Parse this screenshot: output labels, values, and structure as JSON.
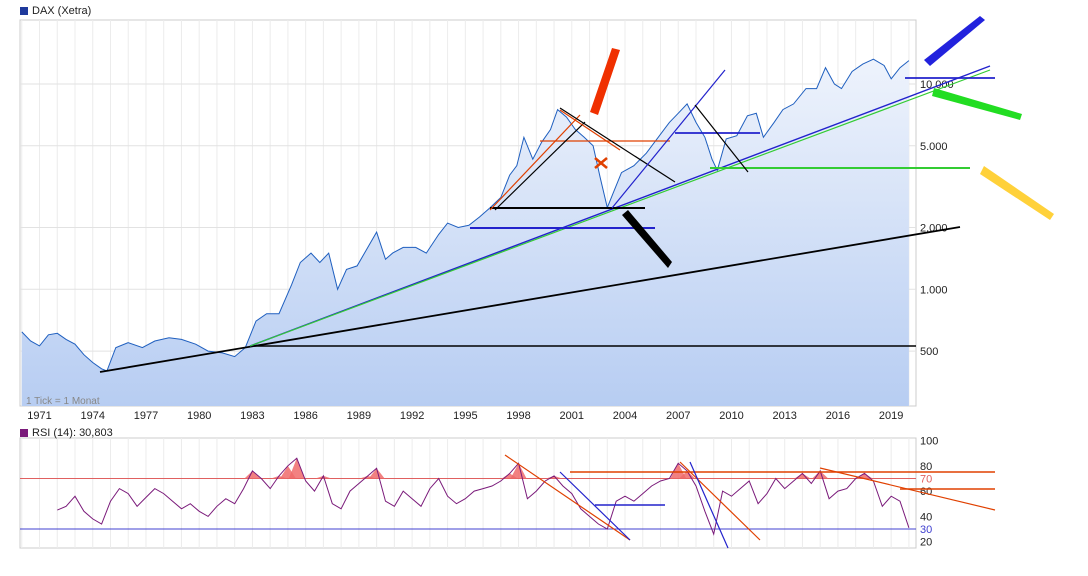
{
  "chart_data": [
    {
      "type": "area",
      "title": "DAX (Xetra)",
      "scale": "log",
      "x_ticks": [
        "1971",
        "1974",
        "1977",
        "1980",
        "1983",
        "1986",
        "1989",
        "1992",
        "1995",
        "1998",
        "2001",
        "2004",
        "2007",
        "2010",
        "2013",
        "2016",
        "2019"
      ],
      "y_ticks": [
        {
          "value": 500,
          "label": "500"
        },
        {
          "value": 1000,
          "label": "1.000"
        },
        {
          "value": 2000,
          "label": "2.000"
        },
        {
          "value": 5000,
          "label": "5.000"
        },
        {
          "value": 10000,
          "label": "10.000"
        }
      ],
      "xlim": [
        1969.9,
        2020.4
      ],
      "ylim": [
        270,
        20500
      ],
      "footnote": "1 Tick = 1 Monat",
      "series": [
        {
          "x": [
            1970.0,
            1970.5,
            1971.0,
            1971.5,
            1972.0,
            1972.5,
            1973.0,
            1973.5,
            1974.0,
            1974.5,
            1974.8,
            1975.3,
            1976.0,
            1976.8,
            1977.5,
            1978.3,
            1979.0,
            1979.8,
            1980.5,
            1981.3,
            1982.0,
            1982.6,
            1983.2,
            1983.8,
            1984.5,
            1985.2,
            1985.7,
            1986.3,
            1986.8,
            1987.3,
            1987.8,
            1988.3,
            1988.9,
            1989.5,
            1990.0,
            1990.5,
            1990.9,
            1991.5,
            1992.2,
            1992.8,
            1993.5,
            1994.0,
            1994.6,
            1995.2,
            1995.8,
            1996.4,
            1997.0,
            1997.5,
            1997.9,
            1998.3,
            1998.8,
            1999.3,
            1999.8,
            2000.2,
            2000.7,
            2001.2,
            2001.7,
            2002.2,
            2002.6,
            2003.0,
            2003.3,
            2003.8,
            2004.5,
            2005.2,
            2005.8,
            2006.5,
            2007.0,
            2007.5,
            2008.0,
            2008.5,
            2008.9,
            2009.2,
            2009.7,
            2010.3,
            2010.9,
            2011.4,
            2011.8,
            2012.4,
            2012.9,
            2013.5,
            2014.2,
            2014.8,
            2015.3,
            2015.8,
            2016.2,
            2016.8,
            2017.4,
            2018.0,
            2018.6,
            2019.0,
            2019.5,
            2020.0
          ],
          "values": [
            620,
            560,
            530,
            600,
            610,
            570,
            540,
            480,
            440,
            410,
            400,
            520,
            550,
            520,
            560,
            580,
            570,
            540,
            500,
            490,
            470,
            520,
            700,
            760,
            760,
            1050,
            1350,
            1500,
            1350,
            1500,
            1000,
            1250,
            1300,
            1600,
            1900,
            1400,
            1500,
            1600,
            1600,
            1500,
            1850,
            2100,
            2000,
            2050,
            2250,
            2500,
            2800,
            3600,
            4000,
            5500,
            4300,
            5200,
            6000,
            7500,
            6900,
            6000,
            5500,
            5000,
            3500,
            2500,
            2900,
            3700,
            4000,
            4600,
            5400,
            6500,
            7200,
            8000,
            6500,
            5500,
            4300,
            3800,
            5400,
            5600,
            7000,
            7200,
            5500,
            6500,
            7500,
            8000,
            9500,
            9500,
            12000,
            10000,
            9500,
            11500,
            12500,
            13200,
            12300,
            10600,
            12000,
            13000
          ]
        }
      ]
    },
    {
      "type": "line",
      "title": "RSI (14): 30,803",
      "y_ticks": [
        20,
        40,
        60,
        80,
        100
      ],
      "ylim": [
        15,
        102
      ],
      "ref_lines": [
        {
          "value": 70,
          "label": "70"
        },
        {
          "value": 30,
          "label": "30"
        }
      ],
      "series": [
        {
          "x": [
            1972.0,
            1972.5,
            1973.0,
            1973.5,
            1974.0,
            1974.5,
            1975.0,
            1975.5,
            1976.0,
            1976.5,
            1977.0,
            1977.5,
            1978.0,
            1978.5,
            1979.0,
            1979.5,
            1980.0,
            1980.5,
            1981.0,
            1981.5,
            1982.0,
            1982.5,
            1983.0,
            1983.5,
            1984.0,
            1984.5,
            1985.0,
            1985.5,
            1986.0,
            1986.5,
            1987.0,
            1987.5,
            1988.0,
            1988.5,
            1989.0,
            1989.5,
            1990.0,
            1990.5,
            1991.0,
            1991.5,
            1992.0,
            1992.5,
            1993.0,
            1993.5,
            1994.0,
            1994.5,
            1995.0,
            1995.5,
            1996.0,
            1996.5,
            1997.0,
            1997.5,
            1998.0,
            1998.5,
            1999.0,
            1999.5,
            2000.0,
            2000.5,
            2001.0,
            2001.5,
            2002.0,
            2002.5,
            2003.0,
            2003.5,
            2004.0,
            2004.5,
            2005.0,
            2005.5,
            2006.0,
            2006.5,
            2007.0,
            2007.5,
            2008.0,
            2008.5,
            2009.0,
            2009.5,
            2010.0,
            2010.5,
            2011.0,
            2011.5,
            2012.0,
            2012.5,
            2013.0,
            2013.5,
            2014.0,
            2014.5,
            2015.0,
            2015.5,
            2016.0,
            2016.5,
            2017.0,
            2017.5,
            2018.0,
            2018.5,
            2019.0,
            2019.5,
            2020.0
          ],
          "values": [
            45,
            48,
            56,
            44,
            38,
            34,
            52,
            62,
            58,
            48,
            55,
            62,
            58,
            52,
            46,
            50,
            44,
            40,
            48,
            54,
            50,
            62,
            76,
            70,
            62,
            72,
            80,
            86,
            68,
            60,
            72,
            50,
            46,
            60,
            66,
            72,
            78,
            52,
            48,
            60,
            54,
            48,
            62,
            70,
            56,
            50,
            54,
            60,
            62,
            64,
            68,
            74,
            82,
            54,
            60,
            68,
            72,
            64,
            58,
            46,
            40,
            34,
            30,
            52,
            56,
            52,
            58,
            64,
            68,
            70,
            82,
            76,
            64,
            44,
            26,
            60,
            56,
            62,
            68,
            50,
            58,
            70,
            62,
            68,
            74,
            66,
            76,
            54,
            60,
            62,
            70,
            74,
            68,
            48,
            56,
            52,
            31
          ]
        }
      ]
    }
  ]
}
